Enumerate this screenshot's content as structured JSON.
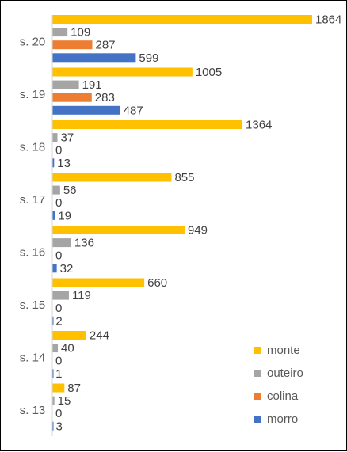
{
  "chart_data": {
    "type": "bar",
    "orientation": "horizontal",
    "categories": [
      "s. 13",
      "s. 14",
      "s. 15",
      "s. 16",
      "s. 17",
      "s. 18",
      "s. 19",
      "s. 20"
    ],
    "series": [
      {
        "name": "monte",
        "color": "#FFC000",
        "values": [
          87,
          244,
          660,
          949,
          855,
          1364,
          1005,
          1864
        ]
      },
      {
        "name": "outeiro",
        "color": "#A5A5A5",
        "values": [
          15,
          40,
          119,
          136,
          56,
          37,
          191,
          109
        ]
      },
      {
        "name": "colina",
        "color": "#ED7D31",
        "values": [
          0,
          0,
          0,
          0,
          0,
          0,
          283,
          287
        ]
      },
      {
        "name": "morro",
        "color": "#4472C4",
        "values": [
          3,
          1,
          2,
          32,
          19,
          13,
          487,
          599
        ]
      }
    ],
    "data_labels": {
      "s. 13": {
        "monte": "87",
        "outeiro": "15",
        "colina": "0",
        "morro": "3"
      },
      "s. 14": {
        "monte": "244",
        "outeiro": "40",
        "colina": "0",
        "morro": "1"
      },
      "s. 15": {
        "monte": "660",
        "outeiro": "119",
        "colina": "0",
        "morro": "2"
      },
      "s. 16": {
        "monte": "949",
        "outeiro": "136",
        "colina": "0",
        "morro": "32"
      },
      "s. 17": {
        "monte": "855",
        "outeiro": "56",
        "colina": "0",
        "morro": "19"
      },
      "s. 18": {
        "monte": "1364",
        "outeiro": "37",
        "colina": "0",
        "morro": "13"
      },
      "s. 19": {
        "monte": "1005",
        "outeiro": "191",
        "colina": "283",
        "morro": "487"
      },
      "s. 20": {
        "monte": "1864",
        "outeiro": "109",
        "colina": "287",
        "morro": "599"
      }
    },
    "xlim": [
      0,
      1864
    ],
    "grid": false,
    "legend_position": "bottom-right",
    "legend": [
      "monte",
      "outeiro",
      "colina",
      "morro"
    ]
  }
}
